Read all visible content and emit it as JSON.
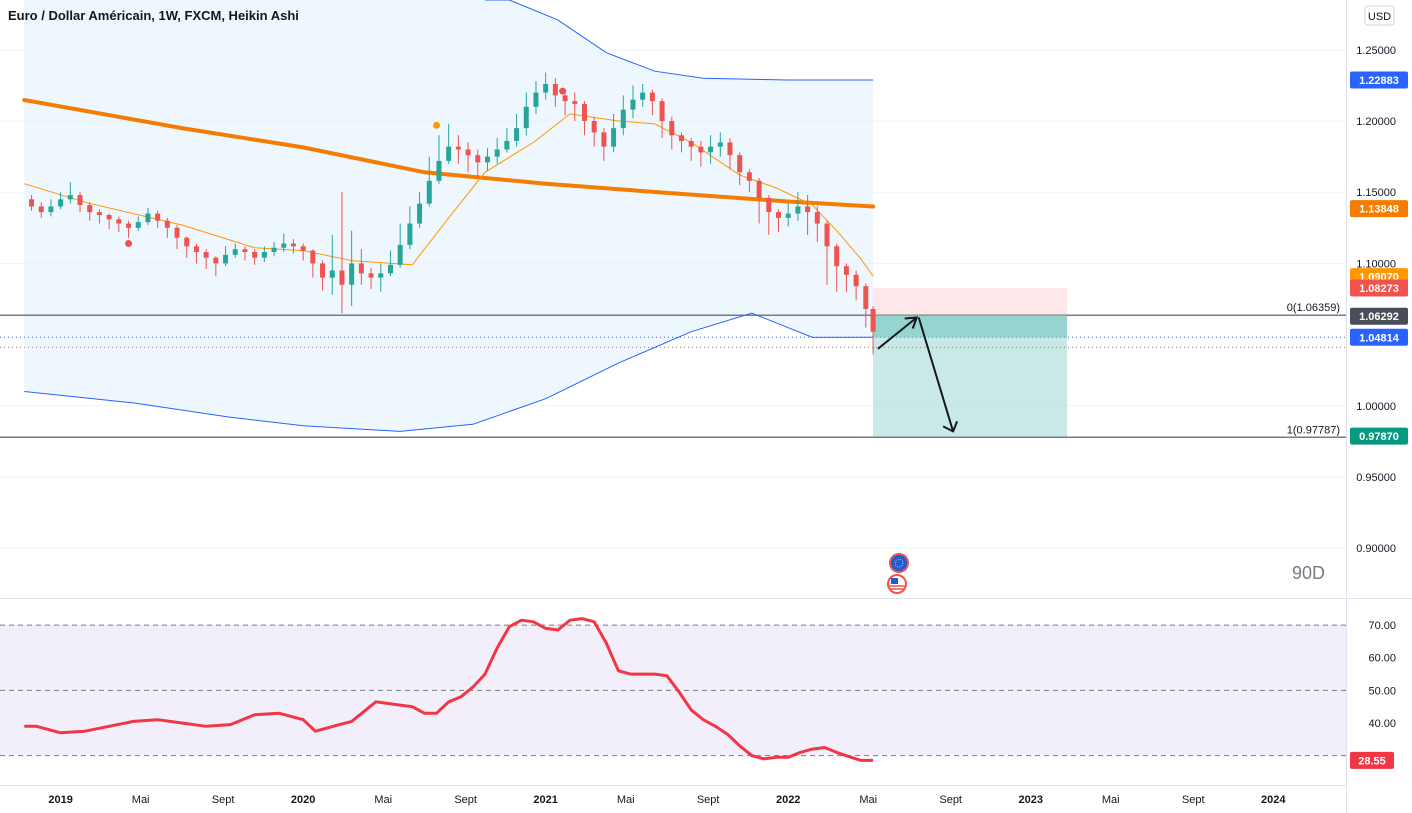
{
  "header": {
    "title": "Euro / Dollar Américain, 1W, FXCM, Heikin Ashi",
    "currency_button": "USD",
    "watermark": "90D"
  },
  "colors": {
    "bull": "#26a69a",
    "bear": "#ef5350",
    "ma_long": "#f57c00",
    "ma_short": "#ff9800",
    "bands": "#2962ff",
    "band_fill": "#e3f2fd",
    "rsi": "#f23645",
    "rsi_fill": "#f3effa",
    "target_zone": "#b2dfdb",
    "stop_zone": "#fde7ea",
    "line_grey": "#787b86"
  },
  "chart_data": [
    {
      "type": "candlestick",
      "series_style": "Heikin Ashi",
      "timeframe": "1W",
      "price_axis": {
        "ticks": [
          "1.25000",
          "1.20000",
          "1.15000",
          "1.10000",
          "1.00000",
          "0.95000",
          "0.90000"
        ],
        "ylim": [
          0.865,
          1.285
        ]
      },
      "time_axis": {
        "ticks": [
          "2019",
          "Mai",
          "Sept",
          "2020",
          "Mai",
          "Sept",
          "2021",
          "Mai",
          "Sept",
          "2022",
          "Mai",
          "Sept",
          "2023",
          "Mai",
          "Sept",
          "2024"
        ],
        "range": [
          "2018-11",
          "2024-03"
        ]
      },
      "price_labels": [
        {
          "value": "1.22883",
          "color": "#2962ff"
        },
        {
          "value": "1.13848",
          "color": "#f57c00"
        },
        {
          "value": "1.09070",
          "color": "#ff9800"
        },
        {
          "value": "1.08273",
          "color": "#ef5350"
        },
        {
          "value": "1.06292",
          "color": "#4a4e59"
        },
        {
          "value": "1.04814",
          "color": "#2962ff"
        },
        {
          "value": "0.97870",
          "color": "#089981"
        }
      ],
      "fib_levels": [
        {
          "label": "0(1.06359)",
          "value": 1.06359
        },
        {
          "label": "1(0.97787)",
          "value": 0.97787
        }
      ],
      "series": [
        {
          "name": "MA long",
          "color": "#f57c00",
          "points": [
            [
              2018.85,
              1.2148
            ],
            [
              2019.5,
              1.195
            ],
            [
              2020.0,
              1.1815
            ],
            [
              2020.5,
              1.164
            ],
            [
              2021.0,
              1.156
            ],
            [
              2021.5,
              1.1495
            ],
            [
              2022.0,
              1.1435
            ],
            [
              2022.35,
              1.14
            ]
          ]
        },
        {
          "name": "MA short",
          "color": "#ff9800",
          "points": [
            [
              2018.85,
              1.156
            ],
            [
              2019.1,
              1.143
            ],
            [
              2019.5,
              1.127
            ],
            [
              2019.8,
              1.111
            ],
            [
              2020.0,
              1.109
            ],
            [
              2020.2,
              1.102
            ],
            [
              2020.45,
              1.099
            ],
            [
              2020.6,
              1.132
            ],
            [
              2020.75,
              1.164
            ],
            [
              2020.95,
              1.185
            ],
            [
              2021.1,
              1.205
            ],
            [
              2021.3,
              1.2
            ],
            [
              2021.45,
              1.198
            ],
            [
              2021.6,
              1.185
            ],
            [
              2021.8,
              1.162
            ],
            [
              2021.95,
              1.153
            ],
            [
              2022.1,
              1.141
            ],
            [
              2022.2,
              1.123
            ],
            [
              2022.3,
              1.103
            ],
            [
              2022.35,
              1.091
            ]
          ]
        },
        {
          "name": "Upper band",
          "color": "#2962ff",
          "points": [
            [
              2020.85,
              1.285
            ],
            [
              2021.05,
              1.271
            ],
            [
              2021.25,
              1.248
            ],
            [
              2021.45,
              1.235
            ],
            [
              2021.65,
              1.23
            ],
            [
              2022.0,
              1.2288
            ],
            [
              2022.35,
              1.2288
            ]
          ]
        },
        {
          "name": "Lower band",
          "color": "#2962ff",
          "points": [
            [
              2018.85,
              1.01
            ],
            [
              2019.3,
              1.002
            ],
            [
              2019.7,
              0.992
            ],
            [
              2020.0,
              0.986
            ],
            [
              2020.4,
              0.982
            ],
            [
              2020.7,
              0.987
            ],
            [
              2021.0,
              1.005
            ],
            [
              2021.3,
              1.03
            ],
            [
              2021.6,
              1.052
            ],
            [
              2021.85,
              1.065
            ],
            [
              2022.1,
              1.048
            ],
            [
              2022.35,
              1.0482
            ]
          ]
        }
      ],
      "candles": [
        [
          2018.88,
          1.145,
          1.14,
          1.148,
          1.137
        ],
        [
          2018.92,
          1.14,
          1.136,
          1.143,
          1.132
        ],
        [
          2018.96,
          1.136,
          1.14,
          1.145,
          1.133
        ],
        [
          2019.0,
          1.14,
          1.145,
          1.15,
          1.138
        ],
        [
          2019.04,
          1.145,
          1.148,
          1.157,
          1.142
        ],
        [
          2019.08,
          1.148,
          1.141,
          1.15,
          1.136
        ],
        [
          2019.12,
          1.141,
          1.136,
          1.143,
          1.13
        ],
        [
          2019.16,
          1.136,
          1.134,
          1.138,
          1.128
        ],
        [
          2019.2,
          1.134,
          1.131,
          1.135,
          1.124
        ],
        [
          2019.24,
          1.131,
          1.128,
          1.133,
          1.122
        ],
        [
          2019.28,
          1.128,
          1.125,
          1.13,
          1.118
        ],
        [
          2019.32,
          1.125,
          1.129,
          1.133,
          1.123
        ],
        [
          2019.36,
          1.129,
          1.135,
          1.139,
          1.127
        ],
        [
          2019.4,
          1.135,
          1.13,
          1.137,
          1.125
        ],
        [
          2019.44,
          1.13,
          1.125,
          1.132,
          1.118
        ],
        [
          2019.48,
          1.125,
          1.118,
          1.127,
          1.11
        ],
        [
          2019.52,
          1.118,
          1.112,
          1.119,
          1.104
        ],
        [
          2019.56,
          1.112,
          1.108,
          1.114,
          1.1
        ],
        [
          2019.6,
          1.108,
          1.104,
          1.11,
          1.096
        ],
        [
          2019.64,
          1.104,
          1.1,
          1.105,
          1.091
        ],
        [
          2019.68,
          1.1,
          1.106,
          1.112,
          1.098
        ],
        [
          2019.72,
          1.106,
          1.11,
          1.114,
          1.104
        ],
        [
          2019.76,
          1.11,
          1.108,
          1.112,
          1.102
        ],
        [
          2019.8,
          1.108,
          1.104,
          1.11,
          1.099
        ],
        [
          2019.84,
          1.104,
          1.108,
          1.112,
          1.101
        ],
        [
          2019.88,
          1.108,
          1.111,
          1.115,
          1.105
        ],
        [
          2019.92,
          1.111,
          1.114,
          1.121,
          1.108
        ],
        [
          2019.96,
          1.114,
          1.112,
          1.117,
          1.107
        ],
        [
          2020.0,
          1.112,
          1.109,
          1.114,
          1.102
        ],
        [
          2020.04,
          1.109,
          1.1,
          1.11,
          1.09
        ],
        [
          2020.08,
          1.1,
          1.09,
          1.102,
          1.081
        ],
        [
          2020.12,
          1.09,
          1.095,
          1.12,
          1.078
        ],
        [
          2020.16,
          1.095,
          1.085,
          1.15,
          1.065
        ],
        [
          2020.2,
          1.085,
          1.1,
          1.123,
          1.07
        ],
        [
          2020.24,
          1.1,
          1.093,
          1.11,
          1.085
        ],
        [
          2020.28,
          1.093,
          1.09,
          1.097,
          1.082
        ],
        [
          2020.32,
          1.09,
          1.093,
          1.1,
          1.08
        ],
        [
          2020.36,
          1.093,
          1.099,
          1.109,
          1.091
        ],
        [
          2020.4,
          1.099,
          1.113,
          1.128,
          1.097
        ],
        [
          2020.44,
          1.113,
          1.128,
          1.14,
          1.11
        ],
        [
          2020.48,
          1.128,
          1.142,
          1.15,
          1.125
        ],
        [
          2020.52,
          1.142,
          1.158,
          1.175,
          1.14
        ],
        [
          2020.56,
          1.158,
          1.172,
          1.19,
          1.156
        ],
        [
          2020.6,
          1.172,
          1.182,
          1.198,
          1.17
        ],
        [
          2020.64,
          1.182,
          1.18,
          1.19,
          1.17
        ],
        [
          2020.68,
          1.18,
          1.176,
          1.185,
          1.164
        ],
        [
          2020.72,
          1.176,
          1.171,
          1.18,
          1.16
        ],
        [
          2020.76,
          1.171,
          1.175,
          1.181,
          1.165
        ],
        [
          2020.8,
          1.175,
          1.18,
          1.188,
          1.17
        ],
        [
          2020.84,
          1.18,
          1.186,
          1.195,
          1.178
        ],
        [
          2020.88,
          1.186,
          1.195,
          1.205,
          1.182
        ],
        [
          2020.92,
          1.195,
          1.21,
          1.22,
          1.19
        ],
        [
          2020.96,
          1.21,
          1.22,
          1.228,
          1.205
        ],
        [
          2021.0,
          1.22,
          1.226,
          1.234,
          1.215
        ],
        [
          2021.04,
          1.226,
          1.218,
          1.23,
          1.21
        ],
        [
          2021.08,
          1.218,
          1.214,
          1.221,
          1.204
        ],
        [
          2021.12,
          1.214,
          1.212,
          1.22,
          1.2
        ],
        [
          2021.16,
          1.212,
          1.2,
          1.214,
          1.19
        ],
        [
          2021.2,
          1.2,
          1.192,
          1.203,
          1.182
        ],
        [
          2021.24,
          1.192,
          1.182,
          1.195,
          1.172
        ],
        [
          2021.28,
          1.182,
          1.195,
          1.205,
          1.178
        ],
        [
          2021.32,
          1.195,
          1.208,
          1.218,
          1.19
        ],
        [
          2021.36,
          1.208,
          1.215,
          1.225,
          1.202
        ],
        [
          2021.4,
          1.215,
          1.22,
          1.226,
          1.21
        ],
        [
          2021.44,
          1.22,
          1.214,
          1.222,
          1.204
        ],
        [
          2021.48,
          1.214,
          1.2,
          1.216,
          1.188
        ],
        [
          2021.52,
          1.2,
          1.19,
          1.203,
          1.18
        ],
        [
          2021.56,
          1.19,
          1.186,
          1.192,
          1.178
        ],
        [
          2021.6,
          1.186,
          1.182,
          1.188,
          1.172
        ],
        [
          2021.64,
          1.182,
          1.178,
          1.186,
          1.168
        ],
        [
          2021.68,
          1.178,
          1.182,
          1.19,
          1.17
        ],
        [
          2021.72,
          1.182,
          1.185,
          1.192,
          1.175
        ],
        [
          2021.76,
          1.185,
          1.176,
          1.188,
          1.166
        ],
        [
          2021.8,
          1.176,
          1.164,
          1.178,
          1.155
        ],
        [
          2021.84,
          1.164,
          1.158,
          1.166,
          1.15
        ],
        [
          2021.88,
          1.158,
          1.146,
          1.16,
          1.128
        ],
        [
          2021.92,
          1.146,
          1.136,
          1.148,
          1.12
        ],
        [
          2021.96,
          1.136,
          1.132,
          1.138,
          1.122
        ],
        [
          2022.0,
          1.132,
          1.135,
          1.142,
          1.126
        ],
        [
          2022.04,
          1.135,
          1.14,
          1.15,
          1.13
        ],
        [
          2022.08,
          1.14,
          1.136,
          1.148,
          1.12
        ],
        [
          2022.12,
          1.136,
          1.128,
          1.14,
          1.115
        ],
        [
          2022.16,
          1.128,
          1.112,
          1.13,
          1.085
        ],
        [
          2022.2,
          1.112,
          1.098,
          1.114,
          1.08
        ],
        [
          2022.24,
          1.098,
          1.092,
          1.1,
          1.08
        ],
        [
          2022.28,
          1.092,
          1.084,
          1.095,
          1.074
        ],
        [
          2022.32,
          1.084,
          1.068,
          1.086,
          1.055
        ],
        [
          2022.35,
          1.068,
          1.052,
          1.07,
          1.036
        ]
      ],
      "markers": [
        {
          "x": 2019.28,
          "y": 1.114,
          "color": "#ef5350"
        },
        {
          "x": 2020.55,
          "y": 1.197,
          "color": "#ff9800"
        },
        {
          "x": 2021.07,
          "y": 1.221,
          "color": "#ef5350"
        }
      ]
    },
    {
      "type": "line",
      "name": "RSI",
      "price_axis": {
        "ticks": [
          "70.00",
          "60.00",
          "50.00",
          "40.00"
        ],
        "ylim": [
          21,
          78
        ]
      },
      "bands": [
        30,
        50,
        70
      ],
      "last_label": {
        "value": "28.55",
        "color": "#f23645"
      },
      "x": [
        2018.85,
        2018.9,
        2019.0,
        2019.1,
        2019.2,
        2019.3,
        2019.4,
        2019.5,
        2019.6,
        2019.7,
        2019.8,
        2019.9,
        2020.0,
        2020.05,
        2020.1,
        2020.15,
        2020.2,
        2020.3,
        2020.4,
        2020.45,
        2020.5,
        2020.55,
        2020.6,
        2020.65,
        2020.7,
        2020.75,
        2020.8,
        2020.85,
        2020.9,
        2020.95,
        2021.0,
        2021.05,
        2021.1,
        2021.15,
        2021.2,
        2021.25,
        2021.3,
        2021.35,
        2021.4,
        2021.45,
        2021.5,
        2021.55,
        2021.6,
        2021.65,
        2021.7,
        2021.75,
        2021.8,
        2021.85,
        2021.9,
        2021.95,
        2022.0,
        2022.05,
        2022.1,
        2022.15,
        2022.2,
        2022.25,
        2022.3,
        2022.35
      ],
      "y": [
        39,
        39,
        37,
        37.5,
        39,
        40.5,
        41,
        40,
        39,
        39.5,
        42.5,
        43,
        41,
        37.5,
        38.5,
        39.5,
        40.5,
        46.5,
        45.5,
        45,
        43,
        43,
        46.5,
        48,
        51,
        55,
        63,
        69.5,
        71.5,
        71,
        69,
        68.5,
        71.5,
        72,
        71,
        64.5,
        56,
        55,
        55,
        55,
        54.5,
        49.5,
        44,
        41,
        39,
        36.5,
        33,
        30,
        29,
        29.5,
        29.5,
        31,
        32,
        32.5,
        31,
        29.7,
        28.55,
        28.55
      ]
    }
  ]
}
